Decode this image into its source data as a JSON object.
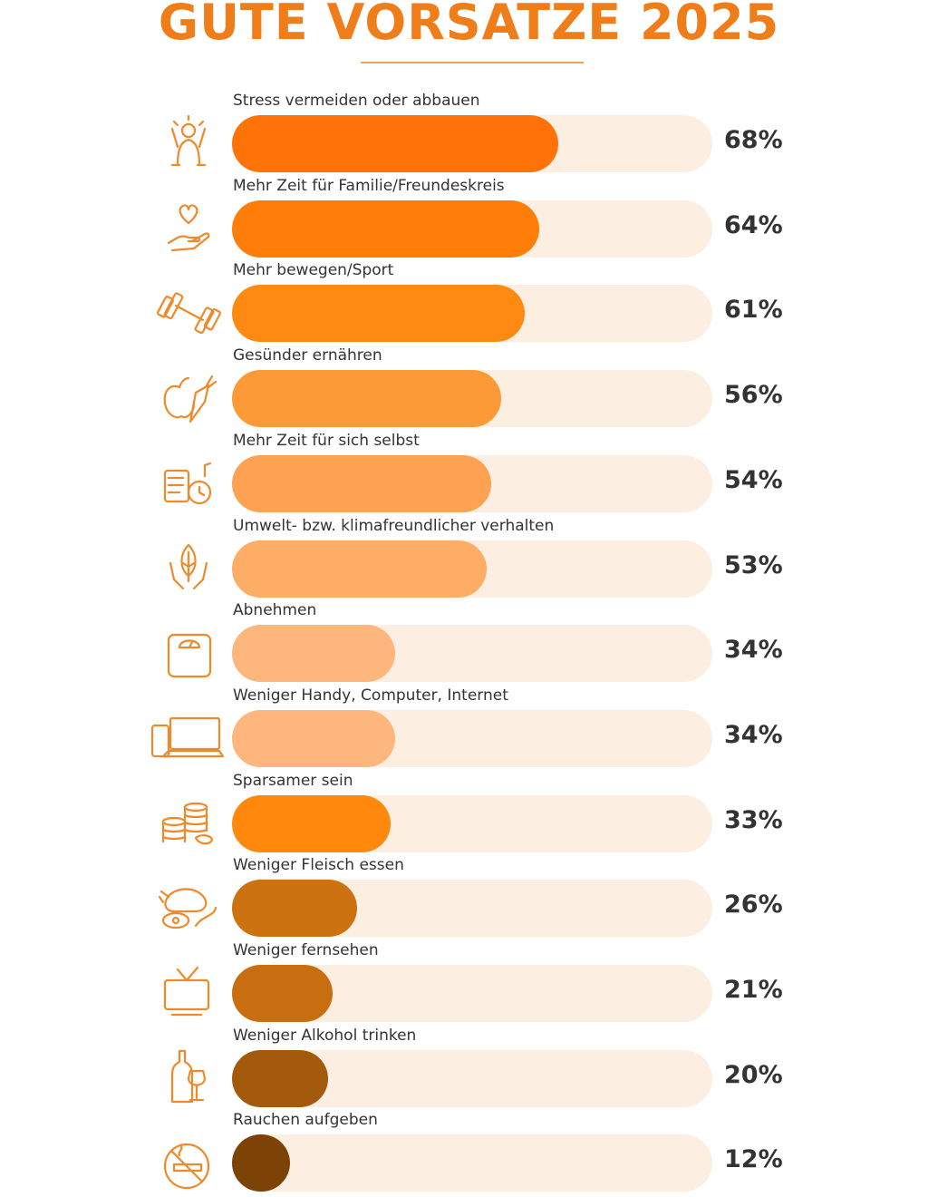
{
  "title": "GUTE VORSATZE 2025",
  "colors": {
    "title": "#ef7d1a",
    "track": "#fdeee2",
    "icon": "#ef8a2a"
  },
  "chart_data": {
    "type": "bar",
    "orientation": "horizontal",
    "title": "GUTE VORSATZE 2025",
    "xlim": [
      0,
      100
    ],
    "categories": [
      "Stress vermeiden oder abbauen",
      "Mehr Zeit für Familie/Freundeskreis",
      "Mehr bewegen/Sport",
      "Gesünder ernähren",
      "Mehr Zeit für sich selbst",
      "Umwelt- bzw. klimafreundlicher verhalten",
      "Abnehmen",
      "Weniger Handy, Computer, Internet",
      "Sparsamer sein",
      "Weniger Fleisch essen",
      "Weniger fernsehen",
      "Weniger Alkohol trinken",
      "Rauchen aufgeben"
    ],
    "values": [
      68,
      64,
      61,
      56,
      54,
      53,
      34,
      34,
      33,
      26,
      21,
      20,
      12
    ],
    "value_labels": [
      "68%",
      "64%",
      "61%",
      "56%",
      "54%",
      "53%",
      "34%",
      "34%",
      "33%",
      "26%",
      "21%",
      "20%",
      "12%"
    ],
    "bar_colors": [
      "#ff7208",
      "#ff7e0a",
      "#ff8a12",
      "#fd9a38",
      "#fda252",
      "#fdad65",
      "#fdb77c",
      "#fdb77c",
      "#ff880d",
      "#cc7210",
      "#c86e10",
      "#a35a0c",
      "#7d4206"
    ],
    "icons": [
      "stress-icon",
      "heart-hand-icon",
      "dumbbell-icon",
      "apple-carrot-icon",
      "relax-clock-icon",
      "leaf-hands-icon",
      "scale-icon",
      "devices-icon",
      "coins-icon",
      "meat-icon",
      "tv-icon",
      "wine-icon",
      "no-smoking-icon"
    ]
  }
}
